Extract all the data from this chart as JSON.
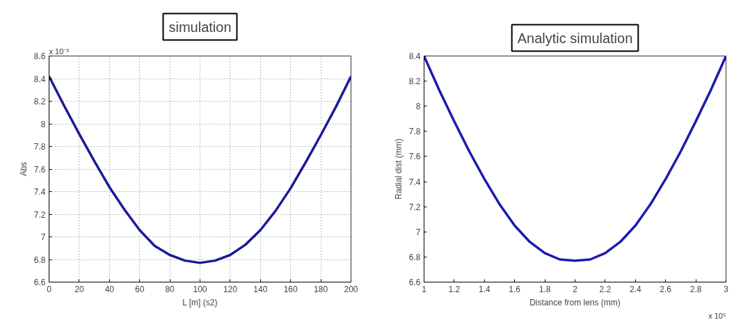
{
  "chart_data": [
    {
      "type": "line",
      "title": "simulation",
      "xlabel": "L [m] (s2)",
      "ylabel": "Abs",
      "annotations": [
        "x 10⁻³"
      ],
      "x": [
        0,
        10,
        20,
        30,
        40,
        50,
        60,
        70,
        80,
        90,
        100,
        110,
        120,
        130,
        140,
        150,
        160,
        170,
        180,
        190,
        200
      ],
      "series": [
        {
          "color": "#1a1a9a",
          "values": [
            8.42,
            8.16,
            7.91,
            7.67,
            7.44,
            7.24,
            7.06,
            6.92,
            6.84,
            6.79,
            6.77,
            6.79,
            6.84,
            6.93,
            7.06,
            7.23,
            7.43,
            7.66,
            7.9,
            8.15,
            8.42
          ]
        }
      ],
      "xlim": [
        0,
        200
      ],
      "ylim": [
        6.6,
        8.6
      ],
      "xticks": [
        0,
        20,
        40,
        60,
        80,
        100,
        120,
        140,
        160,
        180,
        200
      ],
      "yticks": [
        6.6,
        6.8,
        7,
        7.2,
        7.4,
        7.6,
        7.8,
        8,
        8.2,
        8.4,
        8.6
      ],
      "grid": true
    },
    {
      "type": "line",
      "title": "Analytic simulation",
      "xlabel": "Distance from lens (mm)",
      "ylabel": "Radial dist (mm)",
      "annotations": [
        "x 10⁵"
      ],
      "x": [
        1,
        1.1,
        1.2,
        1.3,
        1.4,
        1.5,
        1.6,
        1.7,
        1.8,
        1.9,
        2,
        2.1,
        2.2,
        2.3,
        2.4,
        2.5,
        2.6,
        2.7,
        2.8,
        2.9,
        3
      ],
      "series": [
        {
          "color": "#1a1ab0",
          "values": [
            8.4,
            8.13,
            7.88,
            7.64,
            7.42,
            7.22,
            7.05,
            6.92,
            6.83,
            6.78,
            6.77,
            6.78,
            6.83,
            6.92,
            7.05,
            7.22,
            7.42,
            7.64,
            7.88,
            8.13,
            8.4
          ]
        }
      ],
      "xlim": [
        1,
        3
      ],
      "ylim": [
        6.6,
        8.4
      ],
      "xticks": [
        1,
        1.2,
        1.4,
        1.6,
        1.8,
        2,
        2.2,
        2.4,
        2.6,
        2.8,
        3
      ],
      "yticks": [
        6.6,
        6.8,
        7,
        7.2,
        7.4,
        7.6,
        7.8,
        8,
        8.2,
        8.4
      ]
    }
  ]
}
